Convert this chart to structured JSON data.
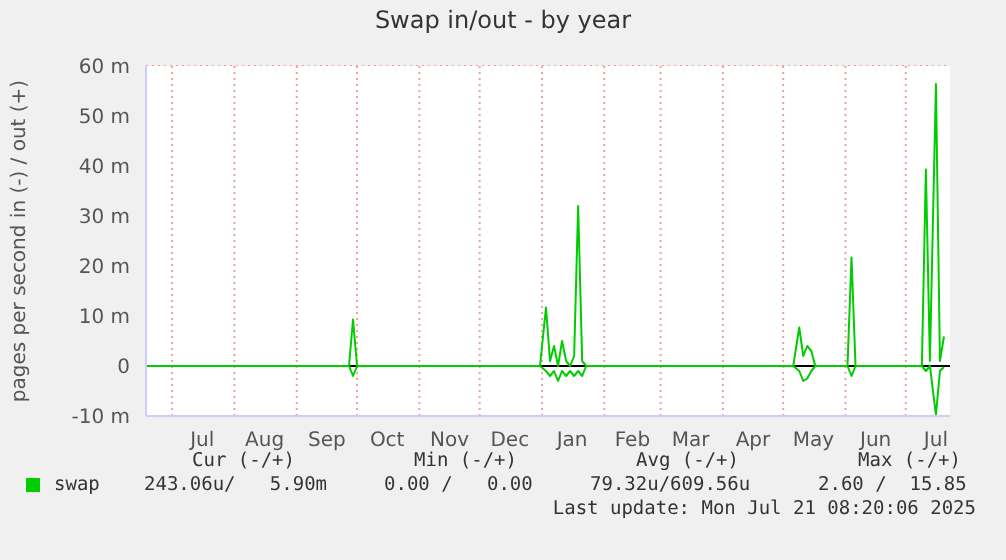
{
  "chart_data": {
    "type": "line",
    "title": "Swap in/out - by year",
    "ylabel": "pages per second in (-) / out (+)",
    "x": [
      "2024-06-18",
      "2024-09-27",
      "2024-09-29",
      "2024-10-01",
      "2024-12-31",
      "2025-01-03",
      "2025-01-05",
      "2025-01-07",
      "2025-01-09",
      "2025-01-11",
      "2025-01-13",
      "2025-01-15",
      "2025-01-17",
      "2025-01-19",
      "2025-01-21",
      "2025-01-23",
      "2025-05-06",
      "2025-05-09",
      "2025-05-11",
      "2025-05-13",
      "2025-05-15",
      "2025-05-17",
      "2025-06-02",
      "2025-06-04",
      "2025-06-06",
      "2025-07-09",
      "2025-07-11",
      "2025-07-13",
      "2025-07-16",
      "2025-07-18",
      "2025-07-20"
    ],
    "series": [
      {
        "name": "swap",
        "color": "#00cc00",
        "values": [
          0,
          0,
          9.3,
          0,
          0,
          11.7,
          1,
          4,
          0,
          5,
          1,
          0,
          2,
          32,
          1,
          0,
          0,
          7.7,
          2,
          4,
          3,
          0,
          0,
          21.7,
          0,
          0,
          39.3,
          1,
          56.4,
          1,
          5.9
        ]
      },
      {
        "color": "#00cc00",
        "values": [
          0,
          0,
          -2,
          0,
          0,
          -1,
          -2,
          -1,
          -3,
          -1,
          -2,
          -1,
          -2,
          -1,
          -2,
          0,
          0,
          -1,
          -3,
          -2.5,
          -1,
          0,
          0,
          -2,
          0,
          0,
          -1,
          0,
          -9.8,
          -1,
          -0.2
        ]
      }
    ],
    "xlim": [
      "2024-06-18",
      "2025-07-23"
    ],
    "xticks": [
      {
        "value": "2024-07-01",
        "label": null
      },
      {
        "value": "2024-07-16",
        "label": "Jul"
      },
      {
        "value": "2024-08-01",
        "label": null
      },
      {
        "value": "2024-08-16",
        "label": "Aug"
      },
      {
        "value": "2024-09-01",
        "label": null
      },
      {
        "value": "2024-09-16",
        "label": "Sep"
      },
      {
        "value": "2024-10-01",
        "label": null
      },
      {
        "value": "2024-10-16",
        "label": "Oct"
      },
      {
        "value": "2024-11-01",
        "label": null
      },
      {
        "value": "2024-11-16",
        "label": "Nov"
      },
      {
        "value": "2024-12-01",
        "label": null
      },
      {
        "value": "2024-12-16",
        "label": "Dec"
      },
      {
        "value": "2025-01-01",
        "label": null
      },
      {
        "value": "2025-01-16",
        "label": "Jan"
      },
      {
        "value": "2025-02-01",
        "label": null
      },
      {
        "value": "2025-02-15",
        "label": "Feb"
      },
      {
        "value": "2025-03-01",
        "label": null
      },
      {
        "value": "2025-03-16",
        "label": "Mar"
      },
      {
        "value": "2025-04-01",
        "label": null
      },
      {
        "value": "2025-04-16",
        "label": "Apr"
      },
      {
        "value": "2025-05-01",
        "label": null
      },
      {
        "value": "2025-05-16",
        "label": "May"
      },
      {
        "value": "2025-06-01",
        "label": null
      },
      {
        "value": "2025-06-16",
        "label": "Jun"
      },
      {
        "value": "2025-07-01",
        "label": null
      },
      {
        "value": "2025-07-16",
        "label": "Jul"
      }
    ],
    "ylim": [
      -10,
      60
    ],
    "yticks": [
      {
        "value": -10,
        "label": "-10 m"
      },
      {
        "value": 0,
        "label": "0"
      },
      {
        "value": 10,
        "label": "10 m"
      },
      {
        "value": 20,
        "label": "20 m"
      },
      {
        "value": 30,
        "label": "30 m"
      },
      {
        "value": 40,
        "label": "40 m"
      },
      {
        "value": 50,
        "label": "50 m"
      },
      {
        "value": 60,
        "label": "60 m"
      }
    ],
    "ref_lines": [
      {
        "axis": "y",
        "value": 0,
        "color": "#000000"
      }
    ],
    "grid": true,
    "legend": "bottom left",
    "marker": "none",
    "line_style": "solid",
    "annotations": [
      "Cur (-/+)",
      "Min (-/+)",
      "Avg (-/+)",
      "Max (-/+)",
      "243.06u/   5.90m",
      "0.00 /   0.00",
      "79.32u/609.56u",
      "2.60 /  15.85",
      "Last update: Mon Jul 21 08:20:06 2025"
    ]
  }
}
